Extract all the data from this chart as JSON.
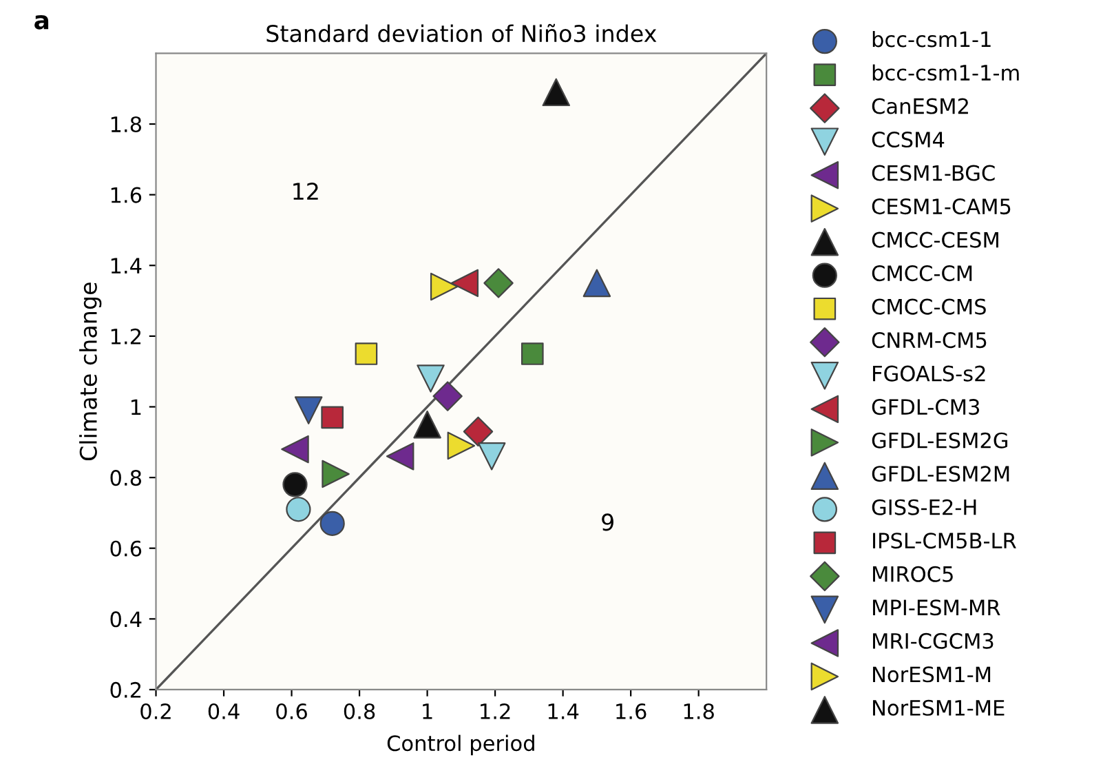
{
  "chart_data": {
    "type": "scatter",
    "title": "Standard deviation of Niño3 index",
    "xlabel": "Control period",
    "ylabel": "Climate change",
    "xlim": [
      0.2,
      2.0
    ],
    "ylim": [
      0.2,
      2.0
    ],
    "xticks": [
      0.2,
      0.4,
      0.6,
      0.8,
      1,
      1.2,
      1.4,
      1.6,
      1.8
    ],
    "yticks": [
      0.2,
      0.4,
      0.6,
      0.8,
      1,
      1.2,
      1.4,
      1.6,
      1.8
    ],
    "legend": "right",
    "annotations": [
      "a",
      "12",
      "9"
    ],
    "series": [
      {
        "name": "bcc-csm1-1",
        "color": "#3a5fa8",
        "marker": "circle",
        "x": [
          0.72
        ],
        "values": [
          0.67
        ]
      },
      {
        "name": "bcc-csm1-1-m",
        "color": "#4a8a3c",
        "marker": "square",
        "x": [
          1.31
        ],
        "values": [
          1.15
        ]
      },
      {
        "name": "CanESM2",
        "color": "#b8283a",
        "marker": "diamond",
        "x": [
          1.15
        ],
        "values": [
          0.93
        ]
      },
      {
        "name": "CCSM4",
        "color": "#8fd3e0",
        "marker": "triangle-down",
        "x": [
          1.19
        ],
        "values": [
          0.86
        ]
      },
      {
        "name": "CESM1-BGC",
        "color": "#6e2a8e",
        "marker": "triangle-left",
        "x": [
          0.61
        ],
        "values": [
          0.88
        ]
      },
      {
        "name": "CESM1-CAM5",
        "color": "#ecdc2e",
        "marker": "triangle-right",
        "x": [
          1.05
        ],
        "values": [
          1.34
        ]
      },
      {
        "name": "CMCC-CESM",
        "color": "#111111",
        "marker": "triangle",
        "x": [
          1.38
        ],
        "values": [
          1.89
        ]
      },
      {
        "name": "CMCC-CM",
        "color": "#111111",
        "marker": "circle",
        "x": [
          0.61
        ],
        "values": [
          0.78
        ]
      },
      {
        "name": "CMCC-CMS",
        "color": "#ecdc2e",
        "marker": "square",
        "x": [
          0.82
        ],
        "values": [
          1.15
        ]
      },
      {
        "name": "CNRM-CM5",
        "color": "#6e2a8e",
        "marker": "diamond",
        "x": [
          1.06
        ],
        "values": [
          1.03
        ]
      },
      {
        "name": "FGOALS-s2",
        "color": "#8fd3e0",
        "marker": "triangle-down",
        "x": [
          1.01
        ],
        "values": [
          1.08
        ]
      },
      {
        "name": "GFDL-CM3",
        "color": "#b8283a",
        "marker": "triangle-left",
        "x": [
          1.11
        ],
        "values": [
          1.35
        ]
      },
      {
        "name": "GFDL-ESM2G",
        "color": "#4a8a3c",
        "marker": "triangle-right",
        "x": [
          0.73
        ],
        "values": [
          0.81
        ]
      },
      {
        "name": "GFDL-ESM2M",
        "color": "#3a5fa8",
        "marker": "triangle",
        "x": [
          1.5
        ],
        "values": [
          1.35
        ]
      },
      {
        "name": "GISS-E2-H",
        "color": "#8fd3e0",
        "marker": "circle",
        "x": [
          0.62
        ],
        "values": [
          0.71
        ]
      },
      {
        "name": "IPSL-CM5B-LR",
        "color": "#b8283a",
        "marker": "square",
        "x": [
          0.72
        ],
        "values": [
          0.97
        ]
      },
      {
        "name": "MIROC5",
        "color": "#4a8a3c",
        "marker": "diamond",
        "x": [
          1.21
        ],
        "values": [
          1.35
        ]
      },
      {
        "name": "MPI-ESM-MR",
        "color": "#3a5fa8",
        "marker": "triangle-down",
        "x": [
          0.65
        ],
        "values": [
          0.99
        ]
      },
      {
        "name": "MRI-CGCM3",
        "color": "#6e2a8e",
        "marker": "triangle-left",
        "x": [
          0.92
        ],
        "values": [
          0.86
        ]
      },
      {
        "name": "NorESM1-M",
        "color": "#ecdc2e",
        "marker": "triangle-right",
        "x": [
          1.1
        ],
        "values": [
          0.89
        ]
      },
      {
        "name": "NorESM1-ME",
        "color": "#111111",
        "marker": "triangle",
        "x": [
          1.0
        ],
        "values": [
          0.95
        ]
      },
      {
        "type": "line",
        "color": "#555555",
        "marker": "none",
        "x": [
          0.2,
          2.0
        ],
        "values": [
          0.2,
          2.0
        ]
      }
    ]
  }
}
